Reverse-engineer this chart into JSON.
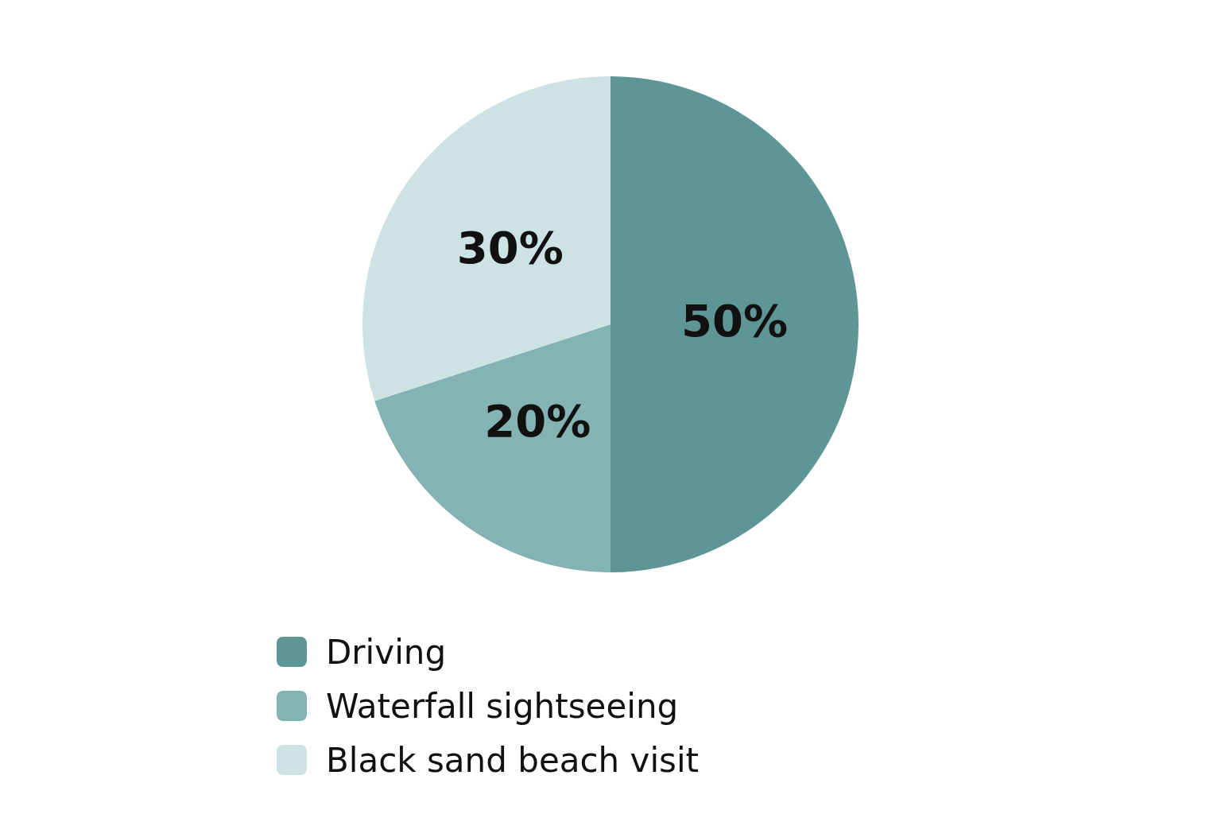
{
  "chart_data": {
    "type": "pie",
    "categories": [
      "Driving",
      "Waterfall sightseeing",
      "Black sand beach visit"
    ],
    "values": [
      50,
      20,
      30
    ],
    "colors": [
      "#5e9696",
      "#84b3b4",
      "#cde2e2"
    ],
    "value_labels": [
      "50%",
      "20%",
      "30%"
    ],
    "legend": "bottom"
  }
}
